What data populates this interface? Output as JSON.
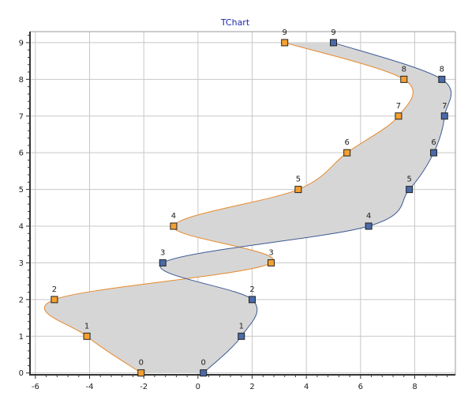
{
  "chart_data": {
    "type": "area",
    "title": "TChart",
    "xlabel": "",
    "ylabel": "",
    "xlim": [
      -6.2,
      9.5
    ],
    "ylim": [
      -0.05,
      9.3
    ],
    "x_ticks": [
      -6,
      -4,
      -2,
      0,
      2,
      4,
      6,
      8
    ],
    "y_ticks": [
      0,
      1,
      2,
      3,
      4,
      5,
      6,
      7,
      8,
      9
    ],
    "grid": true,
    "legend": "none",
    "fill_color": "#d6d6d6",
    "series": [
      {
        "color": "#e8892a",
        "marker_color": "#f5a030",
        "labels": [
          "0",
          "1",
          "2",
          "3",
          "4",
          "5",
          "6",
          "7",
          "8",
          "9"
        ],
        "x": [
          -2.1,
          -4.1,
          -5.3,
          2.7,
          -0.9,
          3.7,
          5.5,
          7.4,
          7.6,
          3.2
        ],
        "y": [
          0,
          1,
          2,
          3,
          4,
          5,
          6,
          7,
          8,
          9
        ]
      },
      {
        "color": "#3c5a94",
        "marker_color": "#4a6aa8",
        "labels": [
          "0",
          "1",
          "2",
          "3",
          "4",
          "5",
          "6",
          "7",
          "8",
          "9"
        ],
        "x": [
          0.2,
          1.6,
          2.0,
          -1.3,
          6.3,
          7.8,
          8.7,
          9.1,
          9.0,
          5.0
        ],
        "y": [
          0,
          1,
          2,
          3,
          4,
          5,
          6,
          7,
          8,
          9
        ]
      }
    ]
  }
}
